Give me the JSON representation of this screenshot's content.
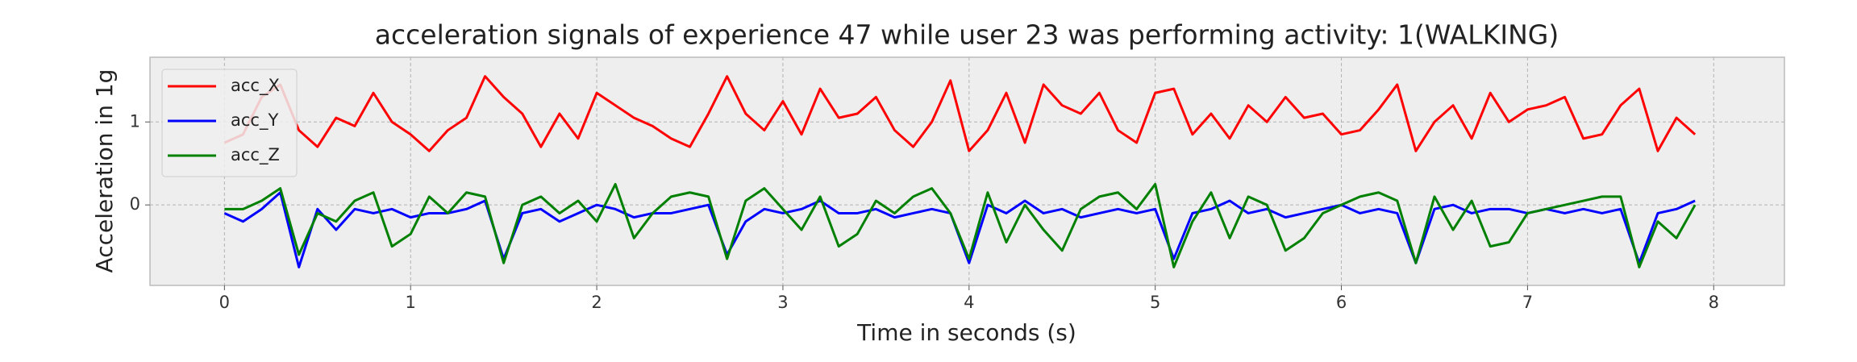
{
  "chart_data": {
    "type": "line",
    "title": "acceleration signals of experience 47 while user 23 was performing activity: 1(WALKING)",
    "xlabel": "Time in seconds (s)",
    "ylabel": "Acceleration in 1g",
    "x": [
      0.0,
      0.1,
      0.2,
      0.3,
      0.4,
      0.5,
      0.6,
      0.7,
      0.8,
      0.9,
      1.0,
      1.1,
      1.2,
      1.3,
      1.4,
      1.5,
      1.6,
      1.7,
      1.8,
      1.9,
      2.0,
      2.1,
      2.2,
      2.3,
      2.4,
      2.5,
      2.6,
      2.7,
      2.8,
      2.9,
      3.0,
      3.1,
      3.2,
      3.3,
      3.4,
      3.5,
      3.6,
      3.7,
      3.8,
      3.9,
      4.0,
      4.1,
      4.2,
      4.3,
      4.4,
      4.5,
      4.6,
      4.7,
      4.8,
      4.9,
      5.0,
      5.1,
      5.2,
      5.3,
      5.4,
      5.5,
      5.6,
      5.7,
      5.8,
      5.9,
      6.0,
      6.1,
      6.2,
      6.3,
      6.4,
      6.5,
      6.6,
      6.7,
      6.8,
      6.9,
      7.0,
      7.1,
      7.2,
      7.3,
      7.4,
      7.5,
      7.6,
      7.7,
      7.8,
      7.9
    ],
    "series": [
      {
        "name": "acc_X",
        "color": "#ff0000",
        "values": [
          0.75,
          0.85,
          1.3,
          1.45,
          0.9,
          0.7,
          1.05,
          0.95,
          1.35,
          1.0,
          0.85,
          0.65,
          0.9,
          1.05,
          1.55,
          1.3,
          1.1,
          0.7,
          1.1,
          0.8,
          1.35,
          1.2,
          1.05,
          0.95,
          0.8,
          0.7,
          1.1,
          1.55,
          1.1,
          0.9,
          1.25,
          0.85,
          1.4,
          1.05,
          1.1,
          1.3,
          0.9,
          0.7,
          1.0,
          1.5,
          0.65,
          0.9,
          1.35,
          0.75,
          1.45,
          1.2,
          1.1,
          1.35,
          0.9,
          0.75,
          1.35,
          1.4,
          0.85,
          1.1,
          0.8,
          1.2,
          1.0,
          1.3,
          1.05,
          1.1,
          0.85,
          0.9,
          1.15,
          1.45,
          0.65,
          1.0,
          1.2,
          0.8,
          1.35,
          1.0,
          1.15,
          1.2,
          1.3,
          0.8,
          0.85,
          1.2,
          1.4,
          0.65,
          1.05,
          0.85
        ]
      },
      {
        "name": "acc_Y",
        "color": "#0000ff",
        "values": [
          -0.1,
          -0.2,
          -0.05,
          0.15,
          -0.75,
          -0.05,
          -0.3,
          -0.05,
          -0.1,
          -0.05,
          -0.15,
          -0.1,
          -0.1,
          -0.05,
          0.05,
          -0.65,
          -0.1,
          -0.05,
          -0.2,
          -0.1,
          0.0,
          -0.05,
          -0.15,
          -0.1,
          -0.1,
          -0.05,
          0.0,
          -0.6,
          -0.2,
          -0.05,
          -0.1,
          -0.05,
          0.05,
          -0.1,
          -0.1,
          -0.05,
          -0.15,
          -0.1,
          -0.05,
          -0.1,
          -0.7,
          0.0,
          -0.1,
          0.05,
          -0.1,
          -0.05,
          -0.15,
          -0.1,
          -0.05,
          -0.1,
          -0.05,
          -0.65,
          -0.1,
          -0.05,
          0.05,
          -0.1,
          -0.05,
          -0.15,
          -0.1,
          -0.05,
          0.0,
          -0.1,
          -0.05,
          -0.1,
          -0.7,
          -0.05,
          0.0,
          -0.1,
          -0.05,
          -0.05,
          -0.1,
          -0.05,
          -0.1,
          -0.05,
          -0.1,
          -0.05,
          -0.7,
          -0.1,
          -0.05,
          0.05
        ]
      },
      {
        "name": "acc_Z",
        "color": "#008000",
        "values": [
          -0.05,
          -0.05,
          0.05,
          0.2,
          -0.6,
          -0.1,
          -0.2,
          0.05,
          0.15,
          -0.5,
          -0.35,
          0.1,
          -0.1,
          0.15,
          0.1,
          -0.7,
          0.0,
          0.1,
          -0.1,
          0.05,
          -0.2,
          0.25,
          -0.4,
          -0.1,
          0.1,
          0.15,
          0.1,
          -0.65,
          0.05,
          0.2,
          -0.05,
          -0.3,
          0.1,
          -0.5,
          -0.35,
          0.05,
          -0.1,
          0.1,
          0.2,
          -0.1,
          -0.65,
          0.15,
          -0.45,
          0.0,
          -0.3,
          -0.55,
          -0.05,
          0.1,
          0.15,
          -0.05,
          0.25,
          -0.75,
          -0.2,
          0.15,
          -0.4,
          0.1,
          0.0,
          -0.55,
          -0.4,
          -0.1,
          0.0,
          0.1,
          0.15,
          0.05,
          -0.7,
          0.1,
          -0.3,
          0.05,
          -0.5,
          -0.45,
          -0.1,
          -0.05,
          0.0,
          0.05,
          0.1,
          0.1,
          -0.75,
          -0.2,
          -0.4,
          0.0
        ]
      }
    ],
    "xlim": [
      -0.4,
      8.38
    ],
    "ylim": [
      -0.97,
      1.78
    ],
    "xticks": [
      0,
      1,
      2,
      3,
      4,
      5,
      6,
      7,
      8
    ],
    "yticks": [
      0,
      1
    ],
    "grid": true,
    "legend": "upper left"
  }
}
